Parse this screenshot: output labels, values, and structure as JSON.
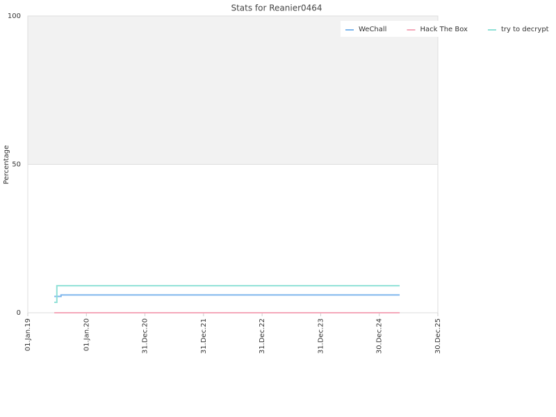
{
  "chart_data": {
    "type": "line",
    "step": "after",
    "title": "Stats for Reanier0464",
    "y_label": "Percentage",
    "x": [
      "2019-06-15",
      "2019-07-01",
      "2019-07-27",
      "2025-05-06"
    ],
    "series": [
      {
        "name": "WeChall",
        "color": "#7cb5ec",
        "values": [
          5.5,
          5.5,
          6,
          6
        ]
      },
      {
        "name": "Hack The Box",
        "color": "#f4a7b9",
        "values": [
          0,
          0,
          0,
          0
        ]
      },
      {
        "name": "try to decrypt",
        "color": "#8ee0d6",
        "values": [
          3.5,
          9.1,
          9.1,
          9.1
        ]
      }
    ],
    "xlim": [
      "2019-01-01",
      "2025-12-30"
    ],
    "xticks": [
      {
        "value": "2019-01-01",
        "label": "01.Jan.19"
      },
      {
        "value": "2020-01-01",
        "label": "01.Jan.20"
      },
      {
        "value": "2020-12-31",
        "label": "31.Dec.20"
      },
      {
        "value": "2021-12-31",
        "label": "31.Dec.21"
      },
      {
        "value": "2022-12-31",
        "label": "31.Dec.22"
      },
      {
        "value": "2023-12-31",
        "label": "31.Dec.23"
      },
      {
        "value": "2024-12-30",
        "label": "30.Dec.24"
      },
      {
        "value": "2025-12-30",
        "label": "30.Dec.25"
      }
    ],
    "ylim": [
      0,
      100
    ],
    "yticks": [
      0,
      50,
      100
    ],
    "plot_band": {
      "from": 50,
      "to": 100,
      "color": "#f2f2f2"
    },
    "legend": "top-right"
  }
}
